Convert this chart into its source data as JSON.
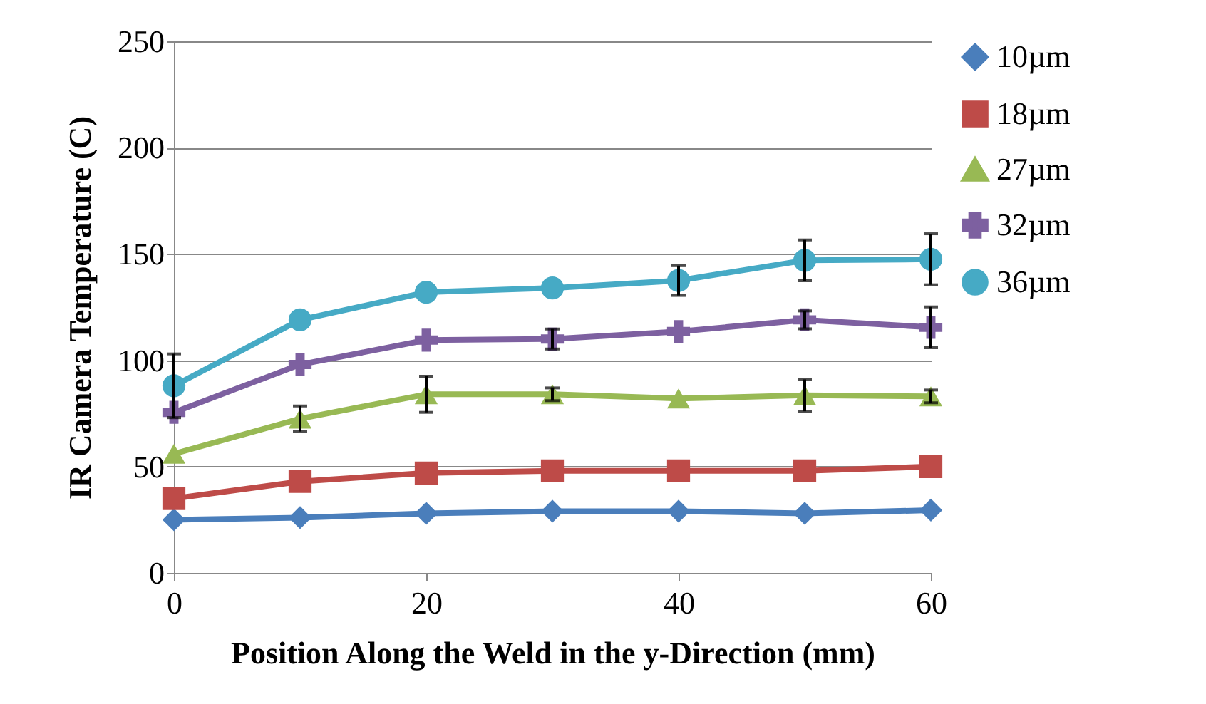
{
  "chart_data": {
    "type": "line",
    "xlabel": "Position Along the Weld in the y-Direction (mm)",
    "ylabel": "IR Camera Temperature (C)",
    "x": [
      0,
      10,
      20,
      30,
      40,
      50,
      60
    ],
    "xlim": [
      0,
      60
    ],
    "xticks": [
      0,
      20,
      40,
      60
    ],
    "ylim": [
      0,
      250
    ],
    "yticks": [
      0,
      50,
      100,
      150,
      200,
      250
    ],
    "grid": "y",
    "legend": "right",
    "series": [
      {
        "name": "10µm",
        "color": "#4a7ebb",
        "marker": "diamond",
        "values": [
          25,
          26,
          28,
          29,
          29,
          28,
          29.5
        ]
      },
      {
        "name": "18µm",
        "color": "#be4b48",
        "marker": "square",
        "values": [
          35,
          43,
          47,
          48,
          48,
          48,
          50
        ]
      },
      {
        "name": "27µm",
        "color": "#98b954",
        "marker": "triangle",
        "values": [
          56,
          72.5,
          84,
          84,
          82,
          83.5,
          83
        ],
        "errors": [
          null,
          6,
          8.5,
          3,
          null,
          7.5,
          3
        ]
      },
      {
        "name": "32µm",
        "color": "#7d60a0",
        "marker": "cross",
        "values": [
          75.5,
          98,
          109.5,
          110,
          113.5,
          119,
          115.5
        ],
        "errors": [
          null,
          null,
          null,
          4.7,
          null,
          4.2,
          9.6
        ]
      },
      {
        "name": "36µm",
        "color": "#46aac5",
        "marker": "circle",
        "values": [
          88,
          119,
          132,
          134,
          137.5,
          147,
          147.5
        ],
        "errors": [
          15,
          null,
          null,
          null,
          7,
          9.6,
          12
        ]
      }
    ]
  }
}
